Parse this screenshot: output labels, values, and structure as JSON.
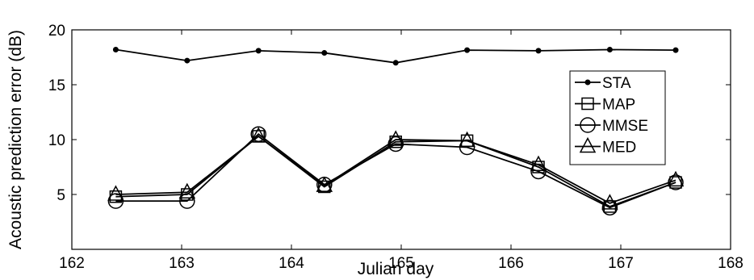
{
  "chart_data": {
    "type": "line",
    "title": "",
    "xlabel": "Julian day",
    "ylabel": "Acoustic prediction error (dB)",
    "xlim": [
      162,
      168
    ],
    "ylim": [
      0,
      20
    ],
    "xticks": [
      "162",
      "163",
      "164",
      "165",
      "166",
      "167",
      "168"
    ],
    "yticks": [
      "5",
      "10",
      "15",
      "20"
    ],
    "grid": false,
    "legend_position": "right",
    "x": [
      162.4,
      163.05,
      163.7,
      164.3,
      164.95,
      165.6,
      166.25,
      166.9,
      167.5
    ],
    "series": [
      {
        "name": "STA",
        "marker": "dot",
        "values": [
          18.2,
          17.2,
          18.1,
          17.9,
          17.0,
          18.15,
          18.1,
          18.2,
          18.15
        ]
      },
      {
        "name": "MAP",
        "marker": "square",
        "values": [
          4.8,
          5.0,
          10.3,
          5.7,
          9.8,
          9.9,
          7.5,
          3.9,
          6.1
        ]
      },
      {
        "name": "MMSE",
        "marker": "circle",
        "values": [
          4.4,
          4.4,
          10.5,
          5.9,
          9.6,
          9.3,
          7.1,
          3.8,
          6.1
        ]
      },
      {
        "name": "MED",
        "marker": "triangle",
        "values": [
          5.0,
          5.2,
          10.3,
          5.8,
          10.0,
          9.9,
          7.7,
          4.2,
          6.3
        ]
      }
    ],
    "colors": {
      "line": "#000000",
      "background": "#ffffff"
    }
  }
}
